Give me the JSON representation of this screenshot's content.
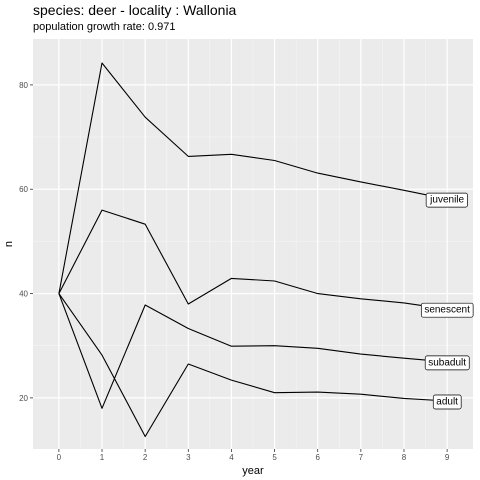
{
  "title": "species: deer - locality : Wallonia",
  "subtitle": "population growth rate: 0.971",
  "chart_data": {
    "type": "line",
    "xlabel": "year",
    "ylabel": "n",
    "x": [
      0,
      1,
      2,
      3,
      4,
      5,
      6,
      7,
      8,
      9
    ],
    "xlim": [
      -0.6,
      9.6
    ],
    "ylim": [
      10.2,
      88.8
    ],
    "x_ticks": [
      "0",
      "1",
      "2",
      "3",
      "4",
      "5",
      "6",
      "7",
      "8",
      "9"
    ],
    "y_ticks": [
      "20",
      "40",
      "60",
      "80"
    ],
    "y_tick_values": [
      20,
      40,
      60,
      80
    ],
    "grid": true,
    "background": "#ebebeb",
    "series": [
      {
        "name": "juvenile",
        "values": [
          40,
          84.2,
          73.8,
          66.3,
          66.7,
          65.5,
          63.1,
          61.4,
          59.8,
          58.1
        ]
      },
      {
        "name": "senescent",
        "values": [
          40,
          56.0,
          53.3,
          38.0,
          42.9,
          42.4,
          40.0,
          39.0,
          38.2,
          37.0
        ]
      },
      {
        "name": "subadult",
        "values": [
          40,
          18.0,
          37.8,
          33.3,
          29.9,
          30.0,
          29.5,
          28.4,
          27.6,
          26.9
        ]
      },
      {
        "name": "adult",
        "values": [
          40,
          28.2,
          12.6,
          26.5,
          23.4,
          21.0,
          21.1,
          20.7,
          19.9,
          19.4
        ]
      }
    ]
  }
}
